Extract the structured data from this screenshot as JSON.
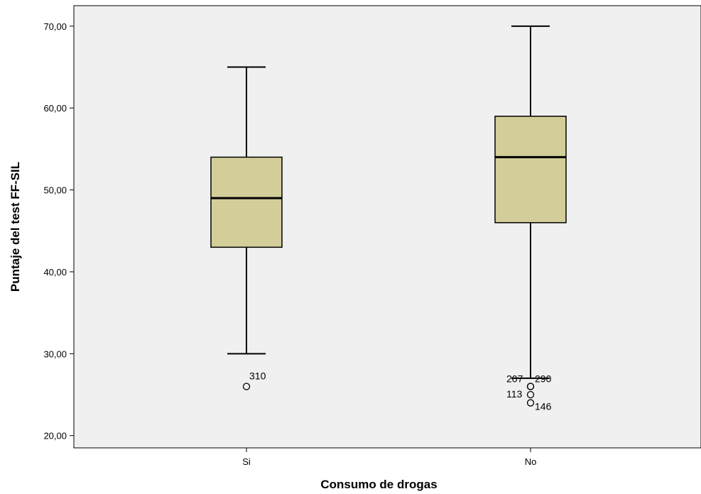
{
  "chart_data": {
    "type": "boxplot",
    "title": "",
    "xlabel": "Consumo de drogas",
    "ylabel": "Puntaje del test FF-SIL",
    "ylim": [
      18.5,
      72.5
    ],
    "yticks": [
      20,
      30,
      40,
      50,
      60,
      70
    ],
    "ytick_labels": [
      "20,00",
      "30,00",
      "40,00",
      "50,00",
      "60,00",
      "70,00"
    ],
    "categories": [
      "Si",
      "No"
    ],
    "boxes": [
      {
        "category": "Si",
        "whisker_low": 30,
        "q1": 43,
        "median": 49,
        "q3": 54,
        "whisker_high": 65,
        "outliers": [
          {
            "value": 26,
            "label": "310"
          }
        ]
      },
      {
        "category": "No",
        "whisker_low": 27,
        "q1": 46,
        "median": 54,
        "q3": 59,
        "whisker_high": 70,
        "outliers": [
          {
            "value": 26,
            "label": "207"
          },
          {
            "value": 26,
            "label": "290"
          },
          {
            "value": 25,
            "label": "113"
          },
          {
            "value": 24,
            "label": "146"
          }
        ]
      }
    ],
    "box_color": "#d3ce99",
    "plot_background": "#f0f0f0",
    "grid": false,
    "legend": "none"
  }
}
